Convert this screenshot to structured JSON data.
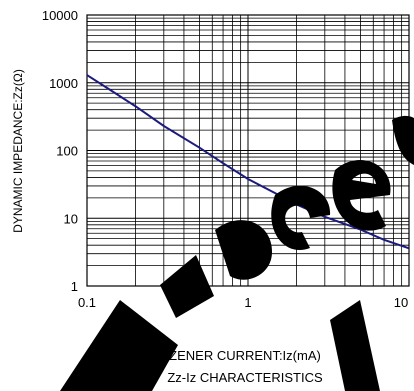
{
  "chart_data": {
    "type": "line",
    "title": "Zz-Iz CHARACTERISTICS",
    "xlabel": "ZENER CURRENT:Iz(mA)",
    "ylabel": "DYNAMIC IMPEDANCE:Zz(Ω)",
    "x_scale": "log",
    "y_scale": "log",
    "xlim": [
      0.1,
      10
    ],
    "ylim": [
      1,
      10000
    ],
    "grid": true,
    "x_ticks": [
      {
        "value": 0.1,
        "label": "0.1"
      },
      {
        "value": 1,
        "label": "1"
      },
      {
        "value": 10,
        "label": "10"
      }
    ],
    "y_ticks": [
      {
        "value": 1,
        "label": "1"
      },
      {
        "value": 10,
        "label": "10"
      },
      {
        "value": 100,
        "label": "100"
      },
      {
        "value": 1000,
        "label": "1000"
      },
      {
        "value": 10000,
        "label": "10000"
      }
    ],
    "series": [
      {
        "color": "#1a1a80",
        "x": [
          0.1,
          0.15,
          0.2,
          0.3,
          0.5,
          0.7,
          1,
          1.5,
          2,
          3,
          5,
          7,
          10
        ],
        "y": [
          1300,
          700,
          450,
          230,
          110,
          65,
          38,
          23,
          16,
          10.5,
          6.8,
          4.8,
          3.6
        ]
      }
    ],
    "watermark": "Recommended"
  }
}
